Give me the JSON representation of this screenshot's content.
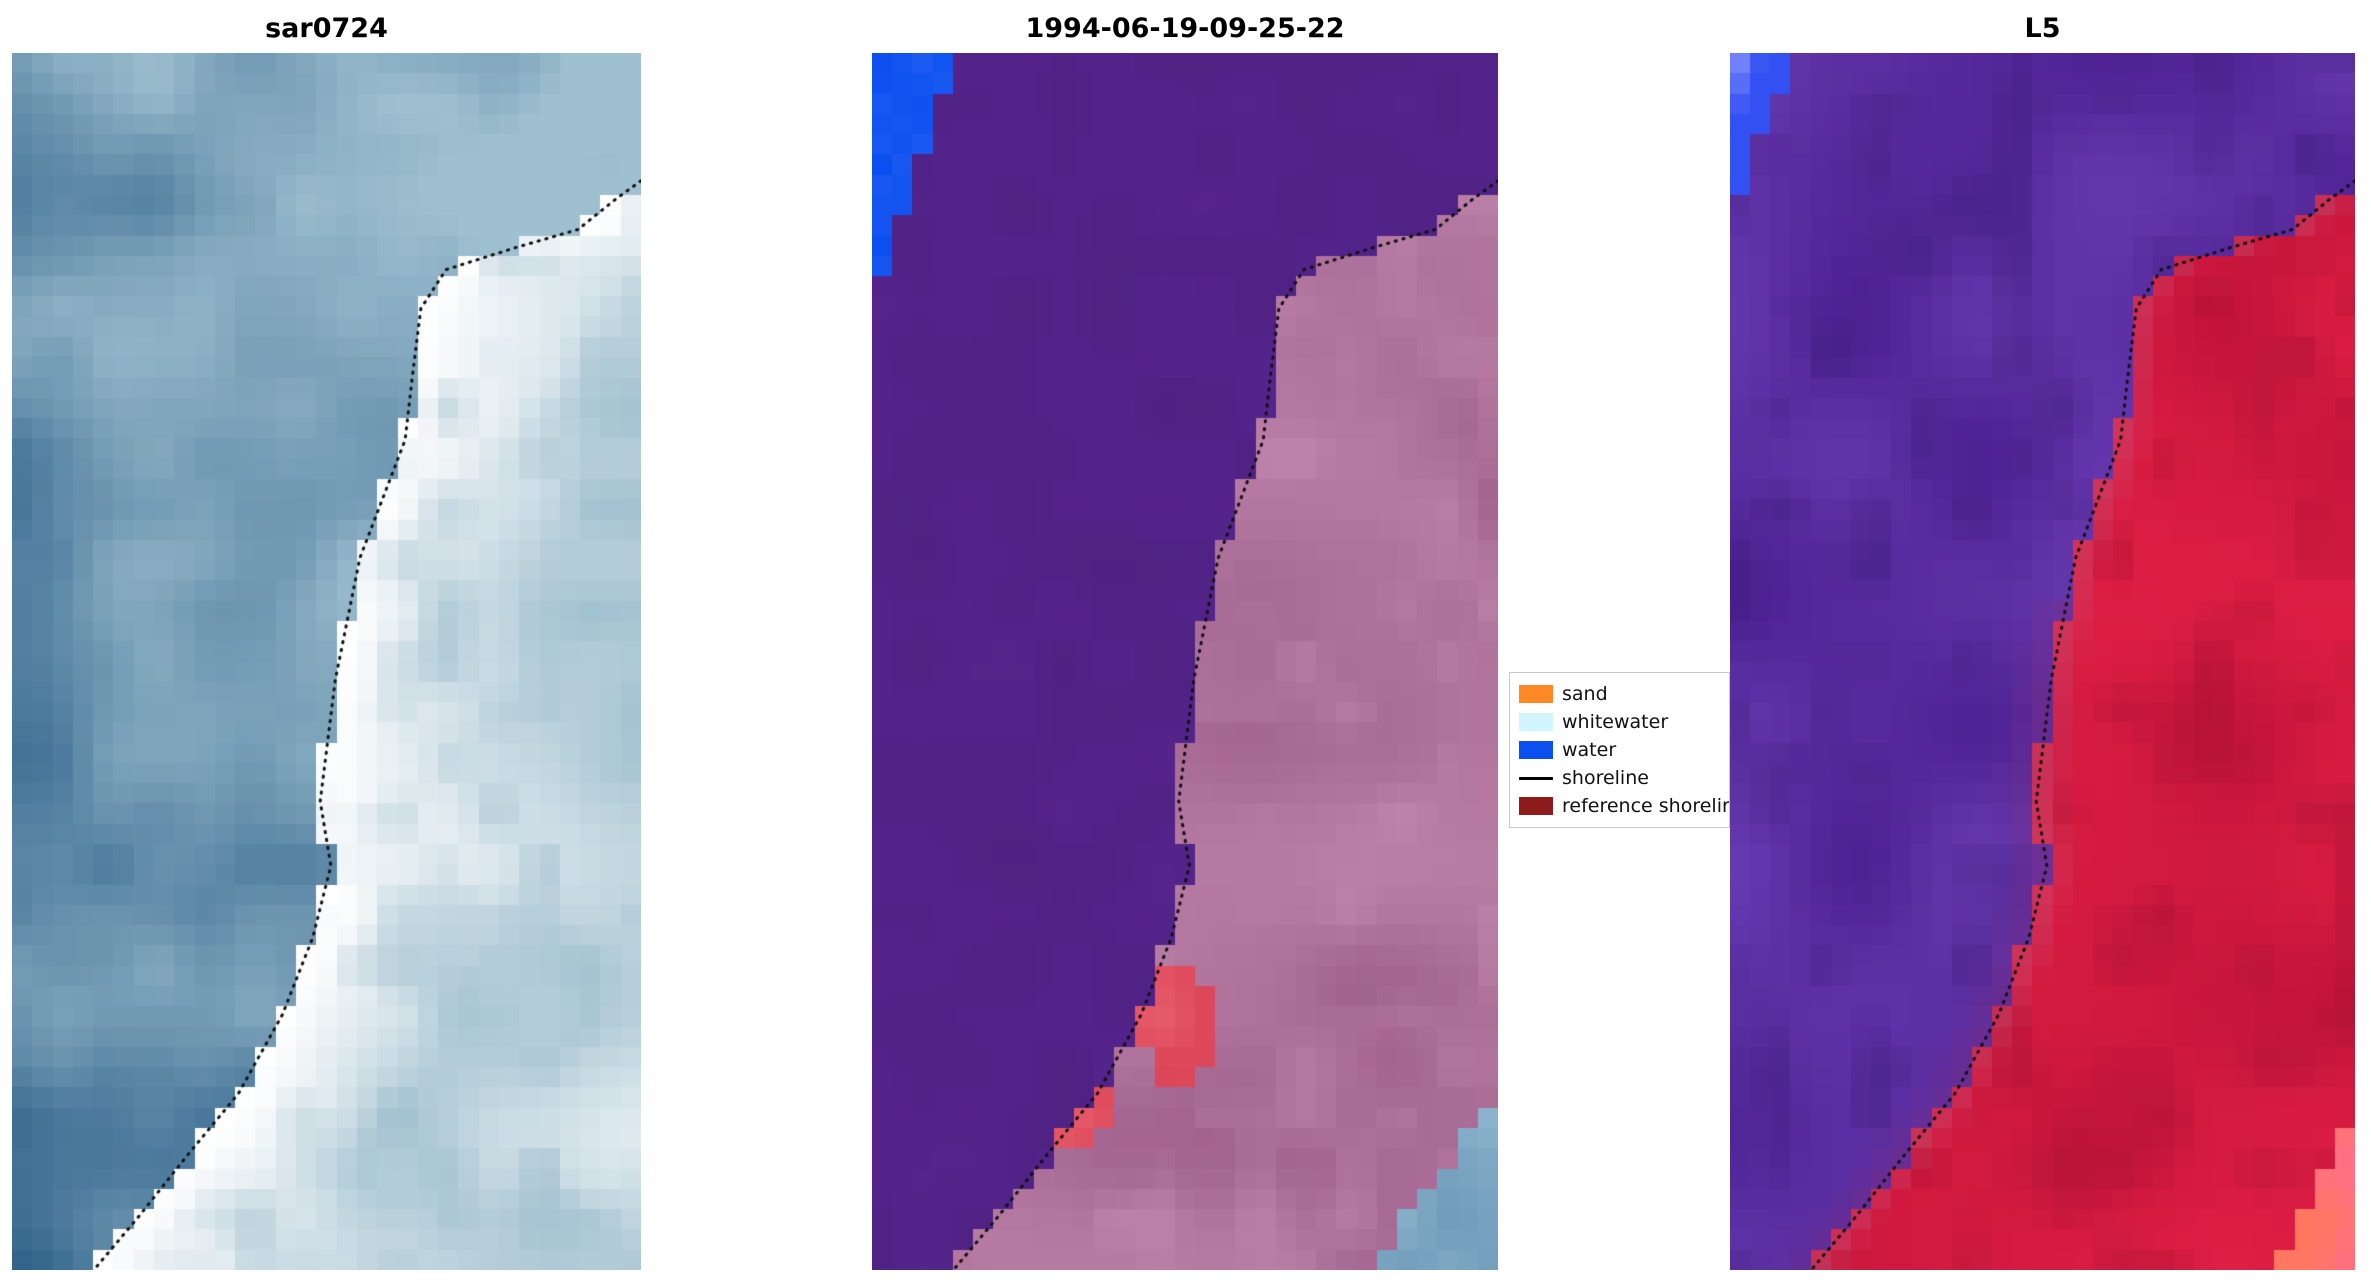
{
  "figure": {
    "background": "#ffffff",
    "panels": [
      {
        "title": "sar0724"
      },
      {
        "title": "1994-06-19-09-25-22"
      },
      {
        "title": "L5"
      }
    ]
  },
  "legend": {
    "items": [
      {
        "label": "sand",
        "type": "patch",
        "color": "#ff8826"
      },
      {
        "label": "whitewater",
        "type": "patch",
        "color": "#d2f6ff"
      },
      {
        "label": "water",
        "type": "patch",
        "color": "#0b4ff0"
      },
      {
        "label": "shoreline",
        "type": "line",
        "color": "#000000"
      },
      {
        "label": "reference shoreline",
        "type": "patch",
        "color": "#8e1c1c"
      }
    ]
  },
  "chart_data": {
    "type": "image-panels",
    "description": "Three co-registered coastal image tiles with a detected dotted shoreline overlaid",
    "panels": [
      {
        "title": "sar0724",
        "kind": "sar-backscatter",
        "water_colors": [
          "#32648c",
          "#9fc0d0"
        ],
        "land_colors": [
          "#ffffff",
          "#b2ccd8"
        ],
        "noise_color": "#8fb4c6"
      },
      {
        "title": "1994-06-19-09-25-22",
        "kind": "classification-overlay",
        "water_color": "#55258c",
        "land_colors": [
          "#a0628d",
          "#bb80a8",
          "#ca92b8"
        ],
        "patches": {
          "water_blue_topleft": "#0b4ff0",
          "red_landward": "#d63a4e",
          "lightblue_bottomright": "#8fb6cf"
        }
      },
      {
        "title": "L5",
        "kind": "false-color-composite",
        "water_colors": [
          "#4b2090",
          "#6a3cb4"
        ],
        "land_colors": [
          "#c2143a",
          "#e01f44"
        ],
        "patches": {
          "blue_topleft": "#3350f2",
          "orange_bottomright": "#ff7a52",
          "pink_bottomright": "#ff6f8a"
        }
      }
    ],
    "shoreline": {
      "color": "#101010",
      "style": "dotted",
      "points_normalized": [
        [
          1.0,
          0.105
        ],
        [
          0.96,
          0.12
        ],
        [
          0.9,
          0.145
        ],
        [
          0.8,
          0.16
        ],
        [
          0.69,
          0.178
        ],
        [
          0.65,
          0.21
        ],
        [
          0.636,
          0.268
        ],
        [
          0.625,
          0.318
        ],
        [
          0.553,
          0.415
        ],
        [
          0.514,
          0.515
        ],
        [
          0.49,
          0.615
        ],
        [
          0.507,
          0.668
        ],
        [
          0.478,
          0.727
        ],
        [
          0.43,
          0.79
        ],
        [
          0.36,
          0.855
        ],
        [
          0.28,
          0.905
        ],
        [
          0.2,
          0.957
        ],
        [
          0.13,
          1.0
        ]
      ]
    }
  }
}
